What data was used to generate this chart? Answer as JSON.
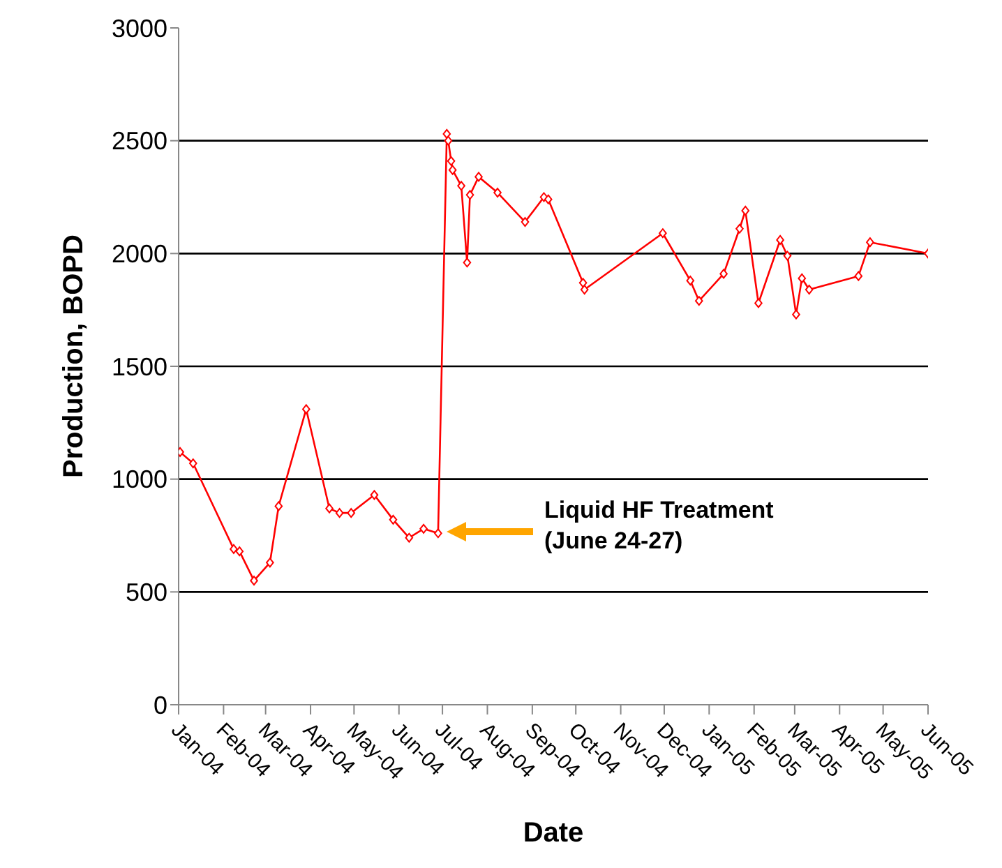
{
  "chart_data": {
    "type": "line",
    "xlabel": "Date",
    "ylabel": "Production, BOPD",
    "x": [
      "2004-01-02",
      "2004-01-11",
      "2004-02-08",
      "2004-02-12",
      "2004-02-22",
      "2004-03-04",
      "2004-03-10",
      "2004-03-29",
      "2004-04-14",
      "2004-04-21",
      "2004-04-29",
      "2004-05-15",
      "2004-05-28",
      "2004-06-08",
      "2004-06-18",
      "2004-06-28",
      "2004-07-04",
      "2004-07-05",
      "2004-07-07",
      "2004-07-08",
      "2004-07-14",
      "2004-07-18",
      "2004-07-20",
      "2004-07-26",
      "2004-08-08",
      "2004-08-27",
      "2004-09-09",
      "2004-09-12",
      "2004-10-06",
      "2004-10-07",
      "2004-11-30",
      "2004-12-19",
      "2004-12-25",
      "2005-01-11",
      "2005-01-22",
      "2005-01-26",
      "2005-02-04",
      "2005-02-19",
      "2005-02-24",
      "2005-03-02",
      "2005-03-06",
      "2005-03-11",
      "2005-04-14",
      "2005-04-22",
      "2005-06-01"
    ],
    "series": [
      {
        "color": "#ff0000",
        "values": [
          1120,
          1070,
          690,
          680,
          550,
          630,
          880,
          1310,
          870,
          850,
          850,
          930,
          820,
          740,
          780,
          760,
          2530,
          2500,
          2410,
          2370,
          2300,
          1960,
          2260,
          2340,
          2270,
          2140,
          2250,
          2240,
          1870,
          1840,
          2090,
          1880,
          1790,
          1910,
          2110,
          2190,
          1780,
          2060,
          1990,
          1730,
          1890,
          1840,
          1900,
          2050,
          2000
        ]
      }
    ],
    "xlim": [
      "2004-01-01",
      "2005-06-01"
    ],
    "xticks": [
      {
        "value": "2004-01-01",
        "label": "Jan-04"
      },
      {
        "value": "2004-02-01",
        "label": "Feb-04"
      },
      {
        "value": "2004-03-01",
        "label": "Mar-04"
      },
      {
        "value": "2004-04-01",
        "label": "Apr-04"
      },
      {
        "value": "2004-05-01",
        "label": "May-04"
      },
      {
        "value": "2004-06-01",
        "label": "Jun-04"
      },
      {
        "value": "2004-07-01",
        "label": "Jul-04"
      },
      {
        "value": "2004-08-01",
        "label": "Aug-04"
      },
      {
        "value": "2004-09-01",
        "label": "Sep-04"
      },
      {
        "value": "2004-10-01",
        "label": "Oct-04"
      },
      {
        "value": "2004-11-01",
        "label": "Nov-04"
      },
      {
        "value": "2004-12-01",
        "label": "Dec-04"
      },
      {
        "value": "2005-01-01",
        "label": "Jan-05"
      },
      {
        "value": "2005-02-01",
        "label": "Feb-05"
      },
      {
        "value": "2005-03-01",
        "label": "Mar-05"
      },
      {
        "value": "2005-04-01",
        "label": "Apr-05"
      },
      {
        "value": "2005-05-01",
        "label": "May-05"
      },
      {
        "value": "2005-06-01",
        "label": "Jun-05"
      }
    ],
    "ylim": [
      0,
      3000
    ],
    "yticks": [
      0,
      500,
      1000,
      1500,
      2000,
      2500,
      3000
    ],
    "grid": "y",
    "marker": "diamond",
    "line_style": "solid",
    "annotations": [
      "Liquid HF Treatment (June 24-27)"
    ]
  }
}
